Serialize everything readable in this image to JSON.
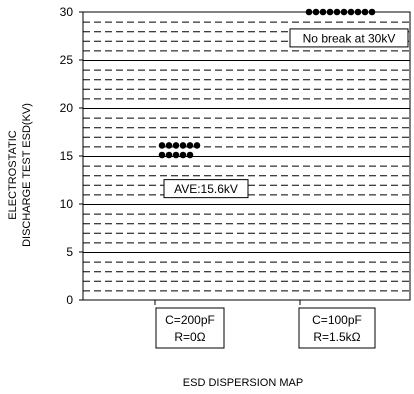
{
  "chart_data": {
    "type": "scatter",
    "title": "",
    "ylabel_line1": "ELECTROSTATIC",
    "ylabel_line2": "DISCHARGE TEST ESD(KV)",
    "xlabel": "ESD DISPERSION MAP",
    "ylim": [
      0,
      30
    ],
    "yticks": [
      0,
      5,
      10,
      15,
      20,
      25,
      30
    ],
    "grid": "dashed horizontal every 1 kV, solid every 5 kV",
    "categories": [
      {
        "line1": "C=200pF",
        "line2": "R=0Ω"
      },
      {
        "line1": "C=100pF",
        "line2": "R=1.5kΩ"
      }
    ],
    "series": [
      {
        "category_index": 0,
        "points": [
          {
            "row": 0,
            "y": 16,
            "count": 6
          },
          {
            "row": 1,
            "y": 15,
            "count": 5
          }
        ]
      },
      {
        "category_index": 1,
        "points": [
          {
            "row": 0,
            "y": 30,
            "count": 10
          }
        ]
      }
    ],
    "annotations": [
      {
        "text": "AVE:15.6kV",
        "category_index": 0,
        "y": 11.6
      },
      {
        "text": "No break at 30kV",
        "category_index": 1,
        "y": 27.3
      }
    ]
  }
}
